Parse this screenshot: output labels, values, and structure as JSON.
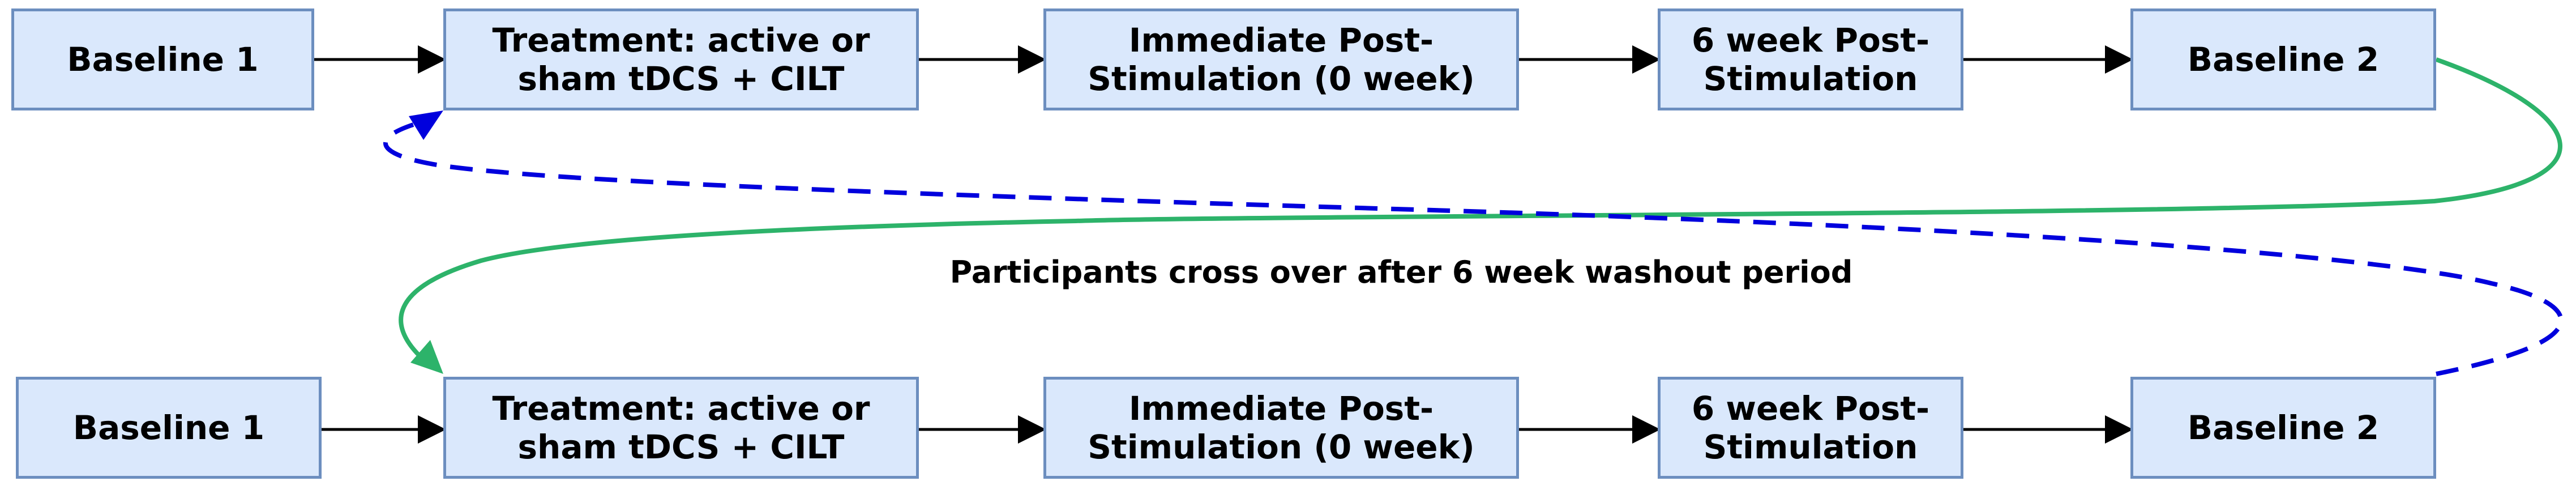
{
  "rows": {
    "top": {
      "baseline1": "Baseline 1",
      "treatment": "Treatment: active or\nsham tDCS + CILT",
      "immediate": "Immediate Post-\nStimulation (0 week)",
      "six_week": "6 week Post-\nStimulation",
      "baseline2": "Baseline 2"
    },
    "bottom": {
      "baseline1": "Baseline 1",
      "treatment": "Treatment: active or\nsham tDCS + CILT",
      "immediate": "Immediate Post-\nStimulation (0 week)",
      "six_week": "6 week Post-\nStimulation",
      "baseline2": "Baseline 2"
    }
  },
  "crossover_label": "Participants cross over after 6 week washout period",
  "colors": {
    "box_fill": "#dae8fc",
    "box_border": "#6c8ebf",
    "arrow": "#000000",
    "crossover_solid": "#2db36a",
    "crossover_dashed": "#0000dd"
  }
}
